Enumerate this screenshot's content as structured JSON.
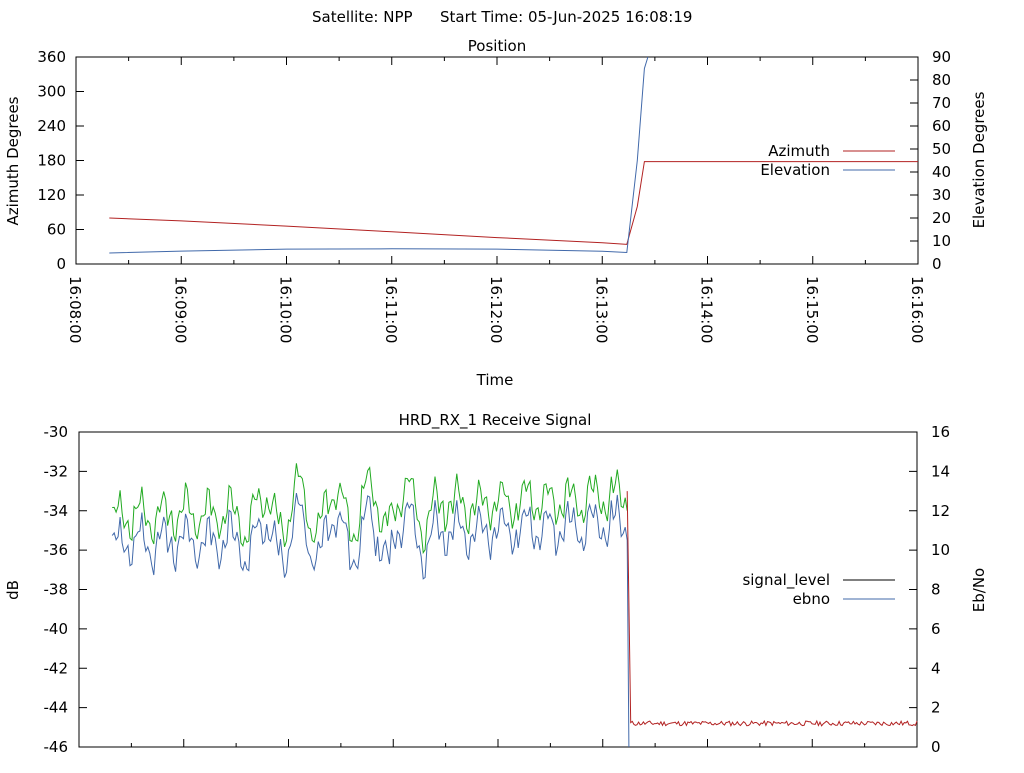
{
  "header": {
    "satellite_label": "Satellite: NPP",
    "start_time_label": "Start Time: 05-Jun-2025 16:08:19"
  },
  "chart_data": [
    {
      "type": "line",
      "title": "Position",
      "xlabel": "Time",
      "ylabel": "Azimuth Degrees",
      "y2label": "Elevation Degrees",
      "x_ticks": [
        "16:08:00",
        "16:09:00",
        "16:10:00",
        "16:11:00",
        "16:12:00",
        "16:13:00",
        "16:14:00",
        "16:15:00",
        "16:16:00"
      ],
      "xlim": [
        "16:08:00",
        "16:16:00"
      ],
      "ylim": [
        0,
        360
      ],
      "y_ticks": [
        0,
        60,
        120,
        180,
        240,
        300,
        360
      ],
      "y2lim": [
        0,
        90
      ],
      "y2_ticks": [
        0,
        10,
        20,
        30,
        40,
        50,
        60,
        70,
        80,
        90
      ],
      "grid": false,
      "legend_position": "right",
      "series": [
        {
          "name": "Azimuth",
          "axis": "left",
          "color": "#b22222",
          "x": [
            "16:08:19",
            "16:09:00",
            "16:10:00",
            "16:11:00",
            "16:12:00",
            "16:13:00",
            "16:13:14",
            "16:13:20",
            "16:13:24",
            "16:16:00"
          ],
          "y": [
            80,
            75,
            66,
            56,
            46,
            37,
            34,
            100,
            178,
            178
          ]
        },
        {
          "name": "Elevation",
          "axis": "right",
          "color": "#4169aa",
          "x": [
            "16:08:19",
            "16:09:00",
            "16:10:00",
            "16:11:00",
            "16:12:00",
            "16:13:00",
            "16:13:14",
            "16:13:20",
            "16:13:24",
            "16:13:26"
          ],
          "y": [
            4.8,
            5.6,
            6.5,
            6.6,
            6.5,
            5.5,
            5.0,
            45,
            85,
            90
          ]
        }
      ]
    },
    {
      "type": "line",
      "title": "HRD_RX_1 Receive Signal",
      "xlabel": "",
      "ylabel": "dB",
      "y2label": "Eb/No",
      "xlim": [
        "16:08:00",
        "16:16:00"
      ],
      "ylim": [
        -46,
        -30
      ],
      "y_ticks": [
        -46,
        -44,
        -42,
        -40,
        -38,
        -36,
        -34,
        -32,
        -30
      ],
      "y2lim": [
        0,
        16
      ],
      "y2_ticks": [
        0,
        2,
        4,
        6,
        8,
        10,
        12,
        14,
        16
      ],
      "grid": false,
      "legend_position": "right",
      "series": [
        {
          "name": "signal_level",
          "axis": "left",
          "color": "#000000",
          "x": [
            "16:08:19",
            "16:13:14",
            "16:13:15",
            "16:16:00"
          ],
          "y": [
            -34.3,
            -33.0,
            -44.8,
            -44.8
          ]
        },
        {
          "name": "ebno",
          "axis": "right",
          "color": "#4169aa",
          "x": [
            "16:08:19",
            "16:13:14",
            "16:13:15",
            "16:16:00"
          ],
          "y": [
            11.0,
            12.6,
            0,
            0
          ]
        },
        {
          "axis": "left",
          "color": "#22aa22",
          "x": [
            "16:08:19",
            "16:13:14"
          ],
          "y": [
            -34.3,
            -33.3
          ]
        },
        {
          "axis": "left",
          "color": "#b22222",
          "x": [
            "16:13:14",
            "16:13:16",
            "16:16:00"
          ],
          "y": [
            -33.0,
            -44.8,
            -44.8
          ]
        }
      ]
    }
  ]
}
